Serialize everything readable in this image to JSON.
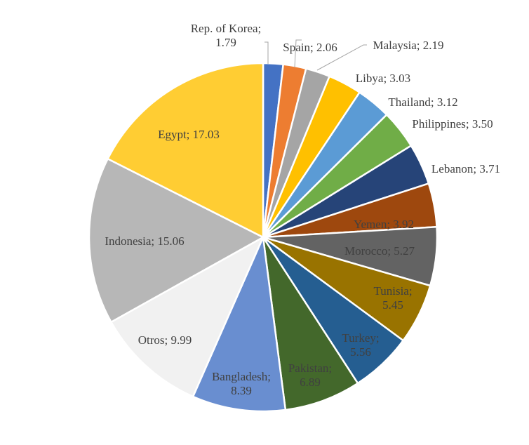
{
  "chart_data": {
    "type": "pie",
    "title": "",
    "slices": [
      {
        "category": "Rep. of Korea",
        "value": 1.79,
        "label_lines": [
          "Rep. of Korea;",
          "1.79"
        ],
        "color": "#4472C4",
        "text_color": "#404040"
      },
      {
        "category": "Spain",
        "value": 2.06,
        "label_lines": [
          "Spain; 2.06"
        ],
        "color": "#ED7D31",
        "text_color": "#404040"
      },
      {
        "category": "Malaysia",
        "value": 2.19,
        "label_lines": [
          "Malaysia; 2.19"
        ],
        "color": "#A5A5A5",
        "text_color": "#404040"
      },
      {
        "category": "Libya",
        "value": 3.03,
        "label_lines": [
          "Libya; 3.03"
        ],
        "color": "#FFC000",
        "text_color": "#404040"
      },
      {
        "category": "Thailand",
        "value": 3.12,
        "label_lines": [
          "Thailand; 3.12"
        ],
        "color": "#5B9BD5",
        "text_color": "#404040"
      },
      {
        "category": "Philippines",
        "value": 3.5,
        "label_lines": [
          "Philippines; 3.50"
        ],
        "color": "#70AD47",
        "text_color": "#404040"
      },
      {
        "category": "Lebanon",
        "value": 3.71,
        "label_lines": [
          "Lebanon; 3.71"
        ],
        "color": "#264478",
        "text_color": "#404040"
      },
      {
        "category": "Yemen",
        "value": 3.92,
        "label_lines": [
          "Yemen; 3.92"
        ],
        "color": "#9E480E",
        "text_color": "#404040"
      },
      {
        "category": "Morocco",
        "value": 5.27,
        "label_lines": [
          "Morocco; 5.27"
        ],
        "color": "#636363",
        "text_color": "#404040"
      },
      {
        "category": "Tunisia",
        "value": 5.45,
        "label_lines": [
          "Tunisia;",
          "5.45"
        ],
        "color": "#997300",
        "text_color": "#404040"
      },
      {
        "category": "Turkey",
        "value": 5.56,
        "label_lines": [
          "Turkey;",
          "5.56"
        ],
        "color": "#255E91",
        "text_color": "#404040"
      },
      {
        "category": "Pakistan",
        "value": 6.89,
        "label_lines": [
          "Pakistan;",
          "6.89"
        ],
        "color": "#43682B",
        "text_color": "#404040"
      },
      {
        "category": "Bangladesh",
        "value": 8.39,
        "label_lines": [
          "Bangladesh;",
          "8.39"
        ],
        "color": "#698ED0",
        "text_color": "#404040"
      },
      {
        "category": "Otros",
        "value": 9.99,
        "label_lines": [
          "Otros; 9.99"
        ],
        "color": "#F1F1F1",
        "text_color": "#404040"
      },
      {
        "category": "Indonesia",
        "value": 15.06,
        "label_lines": [
          "Indonesia; 15.06"
        ],
        "color": "#B7B7B7",
        "text_color": "#404040"
      },
      {
        "category": "Egypt",
        "value": 17.03,
        "label_lines": [
          "Egypt; 17.03"
        ],
        "color": "#FFCD33",
        "text_color": "#404040"
      }
    ],
    "start_angle": "12 o'clock",
    "direction": "clockwise",
    "legend": "none",
    "slice_border_color": "#FFFFFF",
    "leader_line_color": "#A6A6A6"
  }
}
